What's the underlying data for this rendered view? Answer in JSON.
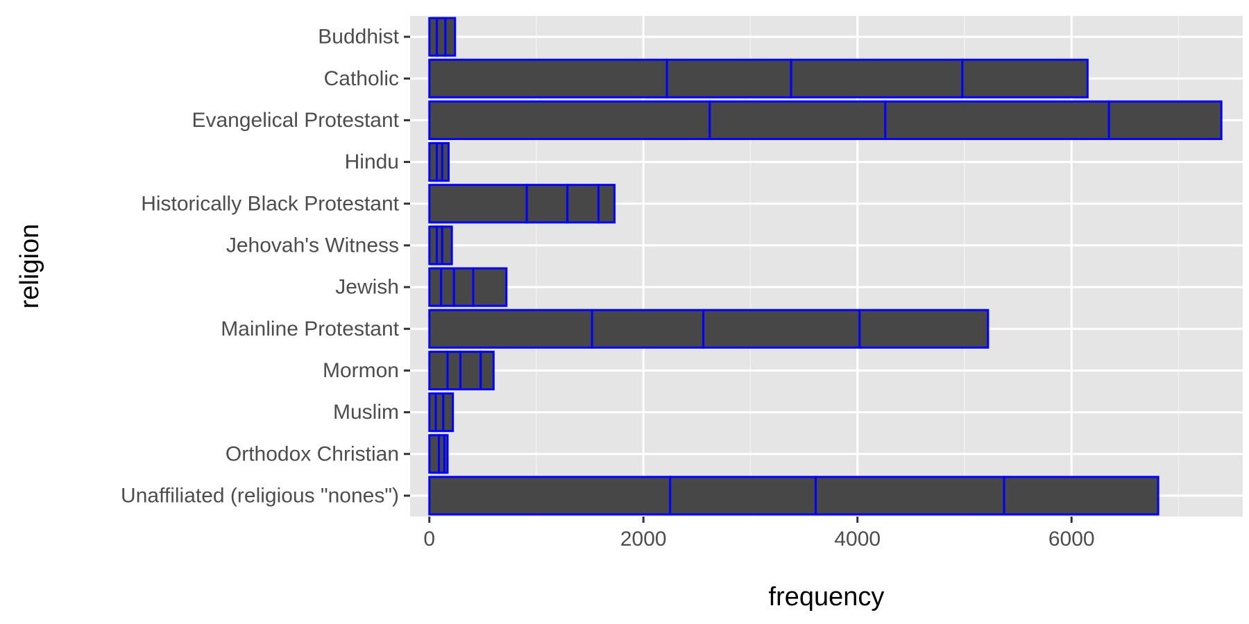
{
  "chart_data": {
    "type": "bar",
    "orientation": "horizontal",
    "stacked": true,
    "xlabel": "frequency",
    "ylabel": "religion",
    "xlim": [
      -180,
      7600
    ],
    "x_ticks": [
      0,
      2000,
      4000,
      6000
    ],
    "grid": true,
    "legend": "none",
    "categories": [
      "Buddhist",
      "Catholic",
      "Evangelical Protestant",
      "Hindu",
      "Historically Black Protestant",
      "Jehovah's Witness",
      "Jewish",
      "Mainline Protestant",
      "Mormon",
      "Muslim",
      "Orthodox Christian",
      "Unaffiliated (religious \"nones\")"
    ],
    "segments": [
      [
        70,
        80,
        90
      ],
      [
        2220,
        1160,
        1600,
        1170
      ],
      [
        2620,
        1640,
        2090,
        1050
      ],
      [
        70,
        50,
        60
      ],
      [
        910,
        380,
        290,
        150
      ],
      [
        70,
        50,
        90
      ],
      [
        110,
        120,
        180,
        310
      ],
      [
        1520,
        1040,
        1460,
        1200
      ],
      [
        170,
        120,
        190,
        120
      ],
      [
        60,
        70,
        90
      ],
      [
        90,
        50,
        30
      ],
      [
        2250,
        1360,
        1760,
        1440
      ]
    ],
    "colors": {
      "bar_fill": "#474747",
      "bar_outline": "#0000ff",
      "panel_bg": "#e5e5e5",
      "grid_major": "#ffffff",
      "grid_minor": "#f2f2f2",
      "tick_text": "#4d4d4d",
      "axis_title": "#000000"
    }
  }
}
